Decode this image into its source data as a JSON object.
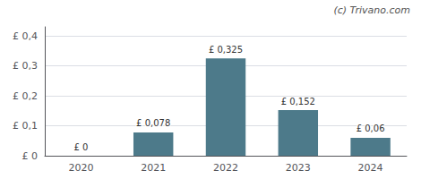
{
  "chart_data": {
    "type": "bar",
    "categories": [
      "2020",
      "2021",
      "2022",
      "2023",
      "2024"
    ],
    "values": [
      0,
      0.078,
      0.325,
      0.152,
      0.06
    ],
    "value_labels": [
      "£ 0",
      "£ 0,078",
      "£ 0,325",
      "£ 0,152",
      "£ 0,06"
    ],
    "color": "#4d7a8a",
    "ylim": [
      0,
      0.43
    ],
    "yticks": [
      {
        "value": 0,
        "label": "£ 0"
      },
      {
        "value": 0.1,
        "label": "£ 0,1"
      },
      {
        "value": 0.2,
        "label": "£ 0,2"
      },
      {
        "value": 0.3,
        "label": "£ 0,3"
      },
      {
        "value": 0.4,
        "label": "£ 0,4"
      }
    ],
    "grid": true,
    "data_labels": true,
    "annotation": "(c) Trivano.com"
  }
}
